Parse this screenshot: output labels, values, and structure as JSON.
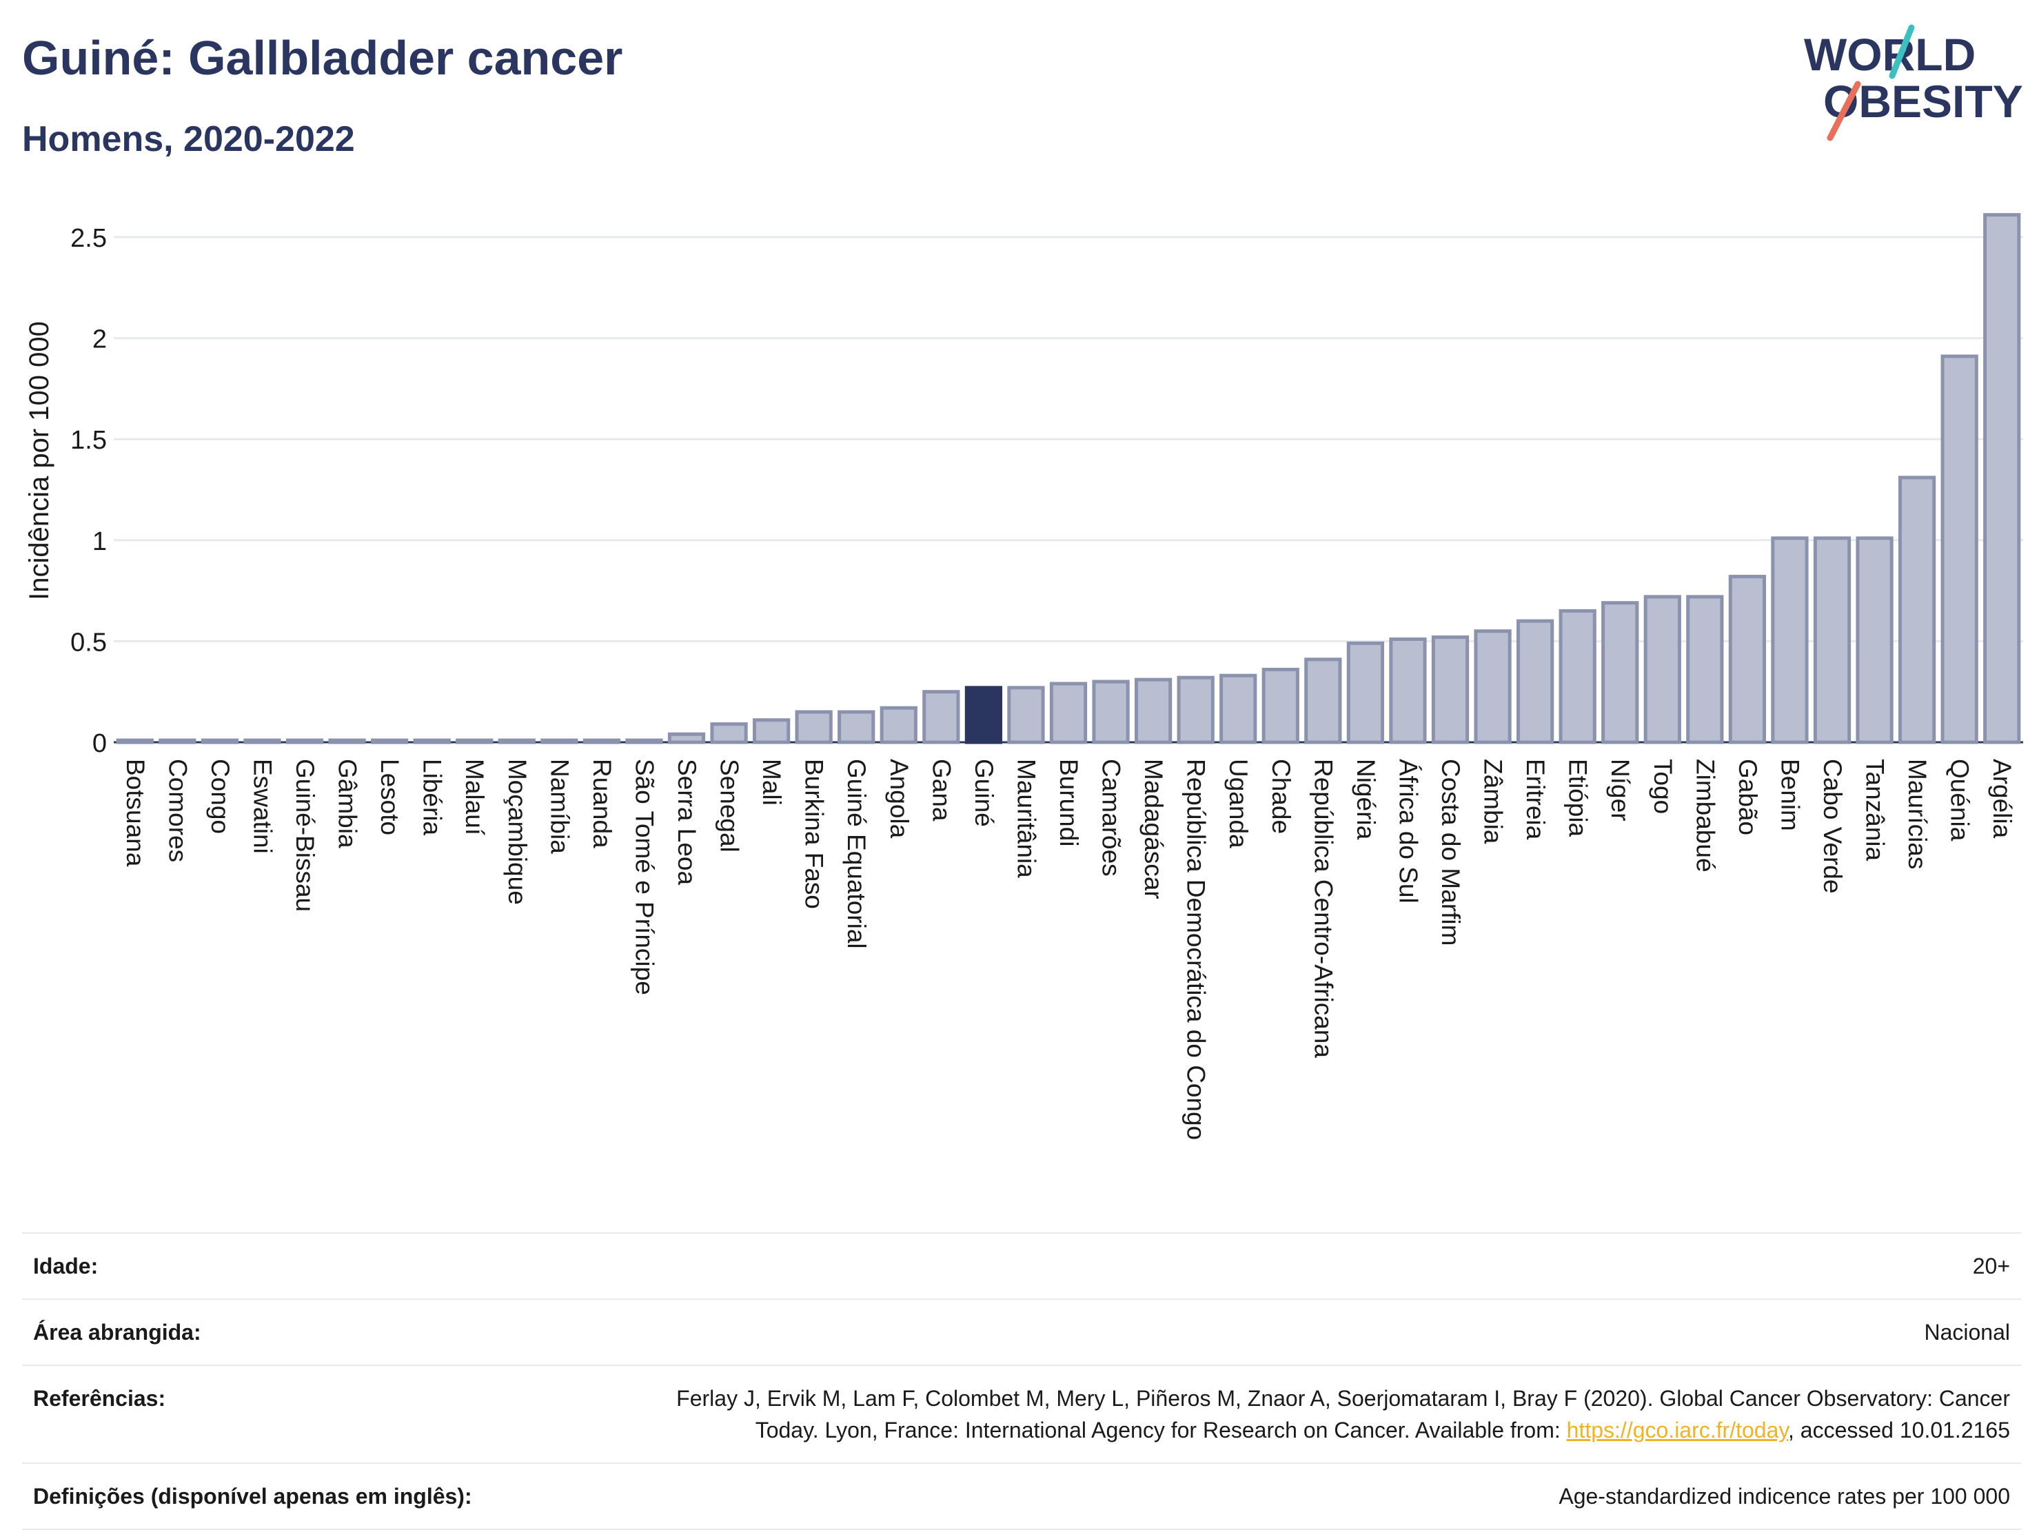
{
  "header": {
    "title": "Guiné: Gallbladder cancer",
    "subtitle": "Homens, 2020-2022"
  },
  "logo": {
    "line1": "WORLD",
    "line2": "OBESITY",
    "accent_teal": "#3bbfc0",
    "accent_coral": "#e8705a",
    "text_color": "#2a3560"
  },
  "chart_data": {
    "type": "bar",
    "title": "Guiné: Gallbladder cancer",
    "subtitle": "Homens, 2020-2022",
    "xlabel": "",
    "ylabel": "Incidência por 100 000",
    "ylim": [
      0,
      2.65
    ],
    "yticks": [
      0,
      0.5,
      1,
      1.5,
      2,
      2.5
    ],
    "ytick_labels": [
      "0",
      "0.5",
      "1",
      "1.5",
      "2",
      "2.5"
    ],
    "grid": true,
    "highlight": "Guiné",
    "colors": {
      "bar": "#b9bfd0",
      "bar_edge": "#8a92ae",
      "highlight": "#2a3560"
    },
    "categories": [
      "Botsuana",
      "Comores",
      "Congo",
      "Eswatini",
      "Guiné-Bissau",
      "Gâmbia",
      "Lesoto",
      "Libéria",
      "Malauí",
      "Moçambique",
      "Namíbia",
      "Ruanda",
      "São Tomé e Príncipe",
      "Serra Leoa",
      "Senegal",
      "Mali",
      "Burkina Faso",
      "Guiné Equatorial",
      "Angola",
      "Gana",
      "Guiné",
      "Mauritânia",
      "Burundi",
      "Camarões",
      "Madagáscar",
      "República Democrática do Congo",
      "Uganda",
      "Chade",
      "República Centro-Africana",
      "Nigéria",
      "África do Sul",
      "Costa do Marfim",
      "Zâmbia",
      "Eritreia",
      "Etiópia",
      "Níger",
      "Togo",
      "Zimbabué",
      "Gabão",
      "Benim",
      "Cabo Verde",
      "Tanzânia",
      "Maurícias",
      "Quénia",
      "Argélia"
    ],
    "values": [
      0.01,
      0.01,
      0.01,
      0.01,
      0.01,
      0.01,
      0.01,
      0.01,
      0.01,
      0.01,
      0.01,
      0.01,
      0.01,
      0.04,
      0.09,
      0.11,
      0.15,
      0.15,
      0.17,
      0.25,
      0.27,
      0.27,
      0.29,
      0.3,
      0.31,
      0.32,
      0.33,
      0.36,
      0.41,
      0.49,
      0.51,
      0.52,
      0.55,
      0.6,
      0.65,
      0.69,
      0.72,
      0.72,
      0.82,
      1.01,
      1.01,
      1.01,
      1.31,
      1.91,
      2.61
    ]
  },
  "info": {
    "age_label": "Idade:",
    "age_value": "20+",
    "area_label": "Área abrangida:",
    "area_value": "Nacional",
    "ref_label": "Referências:",
    "ref_text_1": "Ferlay J, Ervik M, Lam F, Colombet M, Mery L, Piñeros M, Znaor A, Soerjomataram I, Bray F (2020). Global Cancer Observatory: Cancer",
    "ref_text_2": "Today. Lyon, France: International Agency for Research on Cancer. Available from: ",
    "ref_link": "https://gco.iarc.fr/today",
    "ref_text_3": ", accessed 10.01.2165",
    "def_label": "Definições (disponível apenas em inglês):",
    "def_value": "Age-standardized indicence rates per 100 000"
  }
}
